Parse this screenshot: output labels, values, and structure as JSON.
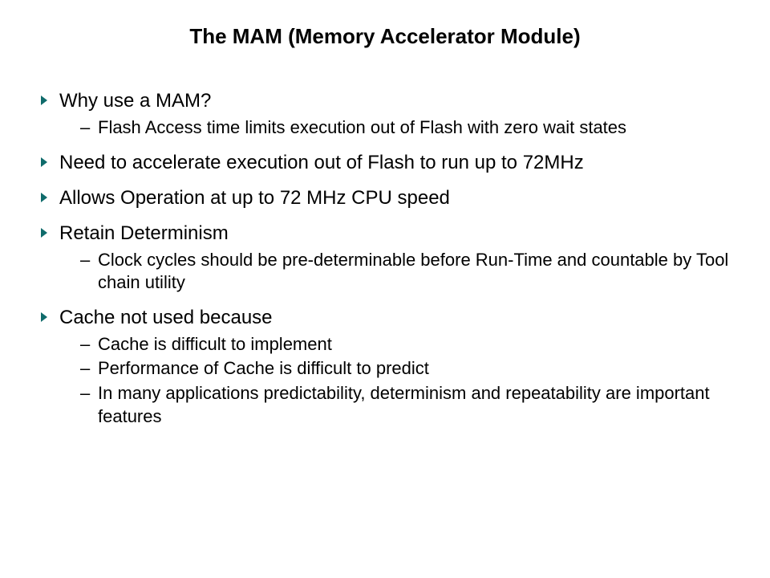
{
  "title": "The MAM (Memory Accelerator Module)",
  "bullet_color": "#0f6b6b",
  "text_color": "#000000",
  "background_color": "#ffffff",
  "title_fontsize": 26,
  "body_fontsize": 24,
  "sub_fontsize": 22,
  "items": [
    {
      "text": "Why use a MAM?",
      "subs": [
        "Flash Access time limits execution out of Flash with zero wait states"
      ]
    },
    {
      "text": "Need to accelerate execution out of Flash to run up to 72MHz",
      "subs": []
    },
    {
      "text": "Allows Operation at up to 72 MHz CPU speed",
      "subs": []
    },
    {
      "text": "Retain Determinism",
      "subs": [
        "Clock cycles should be pre-determinable before Run-Time and countable by Tool chain utility"
      ]
    },
    {
      "text": "Cache not used because",
      "subs": [
        "Cache is difficult to implement",
        "Performance of Cache is difficult to predict",
        "In many applications predictability, determinism and repeatability are important features"
      ]
    }
  ]
}
